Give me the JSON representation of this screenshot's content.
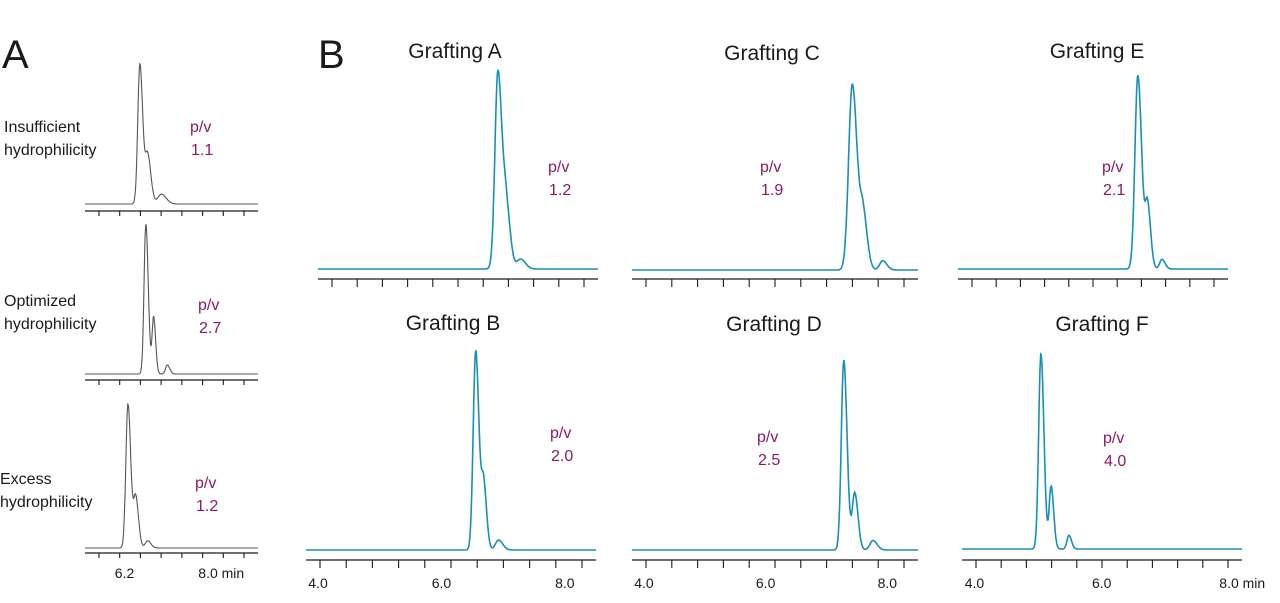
{
  "figure": {
    "panel_a_letter": "A",
    "panel_b_letter": "B"
  },
  "colors": {
    "trace_a": "#555555",
    "trace_b": "#1a8fb5",
    "pv_text": "#8b1a62"
  },
  "chart_data": [
    {
      "type": "line",
      "panel": "A",
      "id": "a1",
      "label_lines": [
        "Insufficient",
        "hydrophilicity"
      ],
      "pv_label": "p/v",
      "pv_value": "1.1",
      "xlim": [
        5.5,
        8.4
      ],
      "peaks": [
        {
          "x": 6.42,
          "h": 1.0,
          "w": 0.035
        },
        {
          "x": 6.55,
          "h": 0.35,
          "w": 0.04
        },
        {
          "x": 6.78,
          "h": 0.07,
          "w": 0.06
        }
      ],
      "show_tick_labels": false
    },
    {
      "type": "line",
      "panel": "A",
      "id": "a2",
      "label_lines": [
        "Optimized",
        "hydrophilicity"
      ],
      "pv_label": "p/v",
      "pv_value": "2.7",
      "xlim": [
        5.5,
        8.4
      ],
      "peaks": [
        {
          "x": 6.52,
          "h": 1.0,
          "w": 0.03
        },
        {
          "x": 6.65,
          "h": 0.38,
          "w": 0.025
        },
        {
          "x": 6.88,
          "h": 0.06,
          "w": 0.03
        }
      ],
      "show_tick_labels": false
    },
    {
      "type": "line",
      "panel": "A",
      "id": "a3",
      "label_lines": [
        "Excess",
        "hydrophilicity"
      ],
      "pv_label": "p/v",
      "pv_value": "1.2",
      "xlim": [
        5.5,
        8.4
      ],
      "peaks": [
        {
          "x": 6.22,
          "h": 1.0,
          "w": 0.035
        },
        {
          "x": 6.35,
          "h": 0.35,
          "w": 0.035
        },
        {
          "x": 6.55,
          "h": 0.05,
          "w": 0.04
        }
      ],
      "show_tick_labels": true,
      "tick_labels": [
        {
          "x": 6.0,
          "label": "6.2"
        },
        {
          "x": 7.4,
          "label": "8.0 min"
        }
      ]
    },
    {
      "type": "line",
      "panel": "B",
      "id": "grafting-a",
      "title": "Grafting A",
      "pv_label": "p/v",
      "pv_value": "1.2",
      "xlim": [
        3.8,
        8.5
      ],
      "peaks": [
        {
          "x": 6.82,
          "h": 1.0,
          "w": 0.05
        },
        {
          "x": 6.96,
          "h": 0.3,
          "w": 0.05
        },
        {
          "x": 7.2,
          "h": 0.05,
          "w": 0.06
        }
      ],
      "show_tick_labels": false
    },
    {
      "type": "line",
      "panel": "B",
      "id": "grafting-c",
      "title": "Grafting C",
      "pv_label": "p/v",
      "pv_value": "1.9",
      "xlim": [
        3.8,
        8.5
      ],
      "peaks": [
        {
          "x": 7.42,
          "h": 1.0,
          "w": 0.06
        },
        {
          "x": 7.6,
          "h": 0.28,
          "w": 0.05
        },
        {
          "x": 7.92,
          "h": 0.05,
          "w": 0.05
        }
      ],
      "show_tick_labels": false
    },
    {
      "type": "line",
      "panel": "B",
      "id": "grafting-e",
      "title": "Grafting E",
      "pv_label": "p/v",
      "pv_value": "2.1",
      "xlim": [
        3.8,
        8.5
      ],
      "peaks": [
        {
          "x": 6.93,
          "h": 1.0,
          "w": 0.05
        },
        {
          "x": 7.1,
          "h": 0.32,
          "w": 0.04
        },
        {
          "x": 7.35,
          "h": 0.05,
          "w": 0.04
        }
      ],
      "show_tick_labels": false
    },
    {
      "type": "line",
      "panel": "B",
      "id": "grafting-b",
      "title": "Grafting B",
      "pv_label": "p/v",
      "pv_value": "2.0",
      "xlim": [
        3.8,
        8.5
      ],
      "peaks": [
        {
          "x": 6.55,
          "h": 1.0,
          "w": 0.04
        },
        {
          "x": 6.68,
          "h": 0.32,
          "w": 0.035
        },
        {
          "x": 6.92,
          "h": 0.05,
          "w": 0.05
        }
      ],
      "show_tick_labels": true,
      "tick_labels": [
        {
          "x": 4.0,
          "label": "4.0"
        },
        {
          "x": 6.0,
          "label": "6.0"
        },
        {
          "x": 8.0,
          "label": "8.0"
        }
      ]
    },
    {
      "type": "line",
      "panel": "B",
      "id": "grafting-d",
      "title": "Grafting D",
      "pv_label": "p/v",
      "pv_value": "2.5",
      "xlim": [
        3.8,
        8.5
      ],
      "peaks": [
        {
          "x": 7.28,
          "h": 1.0,
          "w": 0.04
        },
        {
          "x": 7.46,
          "h": 0.3,
          "w": 0.04
        },
        {
          "x": 7.76,
          "h": 0.05,
          "w": 0.05
        }
      ],
      "show_tick_labels": true,
      "tick_labels": [
        {
          "x": 4.0,
          "label": "4.0"
        },
        {
          "x": 6.0,
          "label": "6.0"
        },
        {
          "x": 8.0,
          "label": "8.0"
        }
      ]
    },
    {
      "type": "line",
      "panel": "B",
      "id": "grafting-f",
      "title": "Grafting F",
      "pv_label": "p/v",
      "pv_value": "4.0",
      "xlim": [
        3.8,
        8.2
      ],
      "peaks": [
        {
          "x": 5.04,
          "h": 1.0,
          "w": 0.035
        },
        {
          "x": 5.2,
          "h": 0.32,
          "w": 0.03
        },
        {
          "x": 5.48,
          "h": 0.07,
          "w": 0.03
        }
      ],
      "show_tick_labels": true,
      "tick_labels": [
        {
          "x": 4.0,
          "label": "4.0"
        },
        {
          "x": 6.0,
          "label": "6.0"
        },
        {
          "x": 8.0,
          "label": "8.0 min"
        }
      ]
    }
  ]
}
